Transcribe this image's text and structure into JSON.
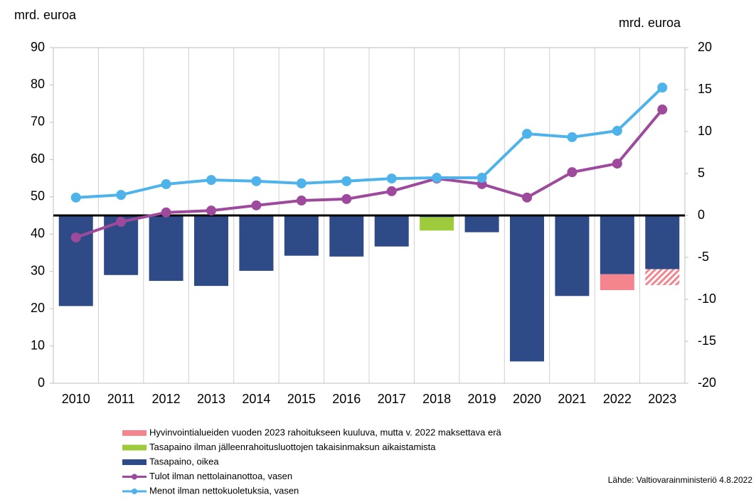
{
  "chart_data": {
    "type": "bar-line",
    "ylabel": "mrd. euroa",
    "y2label": "mrd. euroa",
    "source": "Lähde: Valtiovarainministeriö 4.8.2022",
    "categories": [
      "2010",
      "2011",
      "2012",
      "2013",
      "2014",
      "2015",
      "2016",
      "2017",
      "2018",
      "2019",
      "2020",
      "2021",
      "2022",
      "2023"
    ],
    "ylim": [
      0,
      90
    ],
    "yticks": [
      0,
      10,
      20,
      30,
      40,
      50,
      60,
      70,
      80,
      90
    ],
    "y2lim": [
      -20,
      20
    ],
    "y2ticks": [
      -20,
      -15,
      -10,
      -5,
      0,
      5,
      10,
      15,
      20
    ],
    "grid": "vertical",
    "series": [
      {
        "name": "Hyvinvointialueiden vuoden 2023 rahoitukseen kuuluva, mutta v. 2022 maksettava erä",
        "kind": "bar",
        "axis": "y2",
        "stack": "Tasapaino, oikea",
        "color": "#f4858e",
        "values": [
          null,
          null,
          null,
          null,
          null,
          null,
          null,
          null,
          null,
          null,
          null,
          null,
          -1.9,
          -1.9
        ],
        "hatch": [
          false,
          false,
          false,
          false,
          false,
          false,
          false,
          false,
          false,
          false,
          false,
          false,
          false,
          true
        ]
      },
      {
        "name": "Tasapaino ilman jälleenrahoitusluottojen takaisinmaksun aikaistamista",
        "kind": "bar",
        "axis": "y2",
        "stack": "Tasapaino, oikea",
        "color": "#9dcb3c",
        "values": [
          null,
          null,
          null,
          null,
          null,
          null,
          null,
          null,
          -1.6,
          null,
          null,
          null,
          null,
          null
        ]
      },
      {
        "name": "Tasapaino, oikea",
        "kind": "bar",
        "axis": "y2",
        "color": "#2e4a87",
        "values": [
          -10.8,
          -7.1,
          -7.8,
          -8.4,
          -6.6,
          -4.8,
          -4.9,
          -3.7,
          -0.2,
          -2.0,
          -17.4,
          -9.6,
          -7.0,
          -6.4
        ]
      },
      {
        "name": "Tulot ilman nettolainanottoa, vasen",
        "kind": "line",
        "color": "#9e4a9c",
        "values": [
          39.1,
          43.3,
          45.8,
          46.3,
          47.7,
          49.0,
          49.4,
          51.5,
          54.9,
          53.4,
          49.8,
          56.6,
          58.9,
          73.4
        ]
      },
      {
        "name": "Menot ilman nettokuoletuksia, vasen",
        "kind": "line",
        "color": "#4db3ea",
        "values": [
          49.8,
          50.5,
          53.4,
          54.5,
          54.2,
          53.6,
          54.2,
          54.9,
          55.1,
          55.1,
          66.9,
          66.0,
          67.7,
          79.3
        ]
      }
    ]
  }
}
